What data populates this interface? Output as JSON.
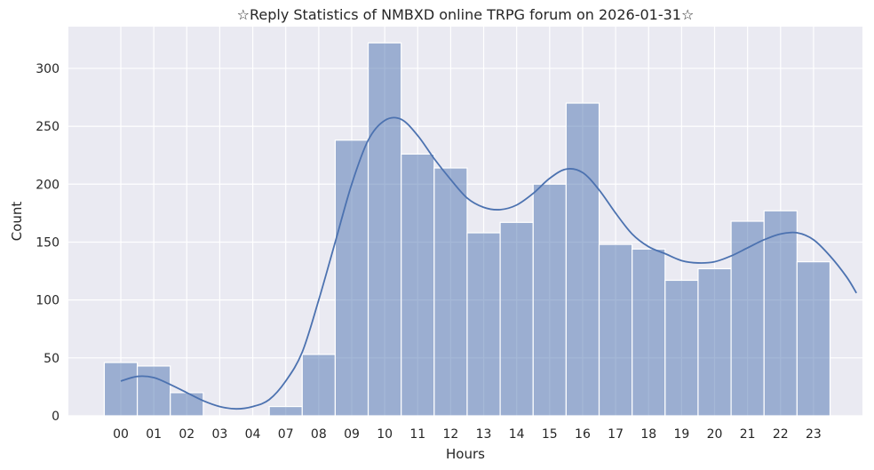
{
  "chart_data": {
    "type": "bar",
    "title": "☆Reply Statistics of NMBXD online TRPG forum on 2026-01-31☆",
    "xlabel": "Hours",
    "ylabel": "Count",
    "categories": [
      "00",
      "01",
      "02",
      "03",
      "04",
      "07",
      "08",
      "09",
      "10",
      "11",
      "12",
      "13",
      "14",
      "15",
      "16",
      "17",
      "18",
      "19",
      "20",
      "21",
      "22",
      "23"
    ],
    "values": [
      46,
      43,
      20,
      0,
      0,
      8,
      53,
      238,
      322,
      226,
      214,
      158,
      167,
      200,
      270,
      148,
      144,
      117,
      127,
      168,
      177,
      133
    ],
    "kde": [
      [
        0.0,
        30
      ],
      [
        0.5,
        34
      ],
      [
        1.0,
        33
      ],
      [
        1.5,
        27
      ],
      [
        2.0,
        20
      ],
      [
        2.5,
        13
      ],
      [
        3.0,
        8
      ],
      [
        3.5,
        6
      ],
      [
        4.0,
        8
      ],
      [
        4.5,
        14
      ],
      [
        5.0,
        30
      ],
      [
        5.5,
        55
      ],
      [
        6.0,
        100
      ],
      [
        6.5,
        150
      ],
      [
        7.0,
        200
      ],
      [
        7.5,
        238
      ],
      [
        8.0,
        255
      ],
      [
        8.5,
        256
      ],
      [
        9.0,
        242
      ],
      [
        9.5,
        222
      ],
      [
        10.0,
        204
      ],
      [
        10.5,
        188
      ],
      [
        11.0,
        180
      ],
      [
        11.5,
        178
      ],
      [
        12.0,
        182
      ],
      [
        12.5,
        192
      ],
      [
        13.0,
        205
      ],
      [
        13.5,
        213
      ],
      [
        14.0,
        210
      ],
      [
        14.5,
        195
      ],
      [
        15.0,
        175
      ],
      [
        15.5,
        157
      ],
      [
        16.0,
        146
      ],
      [
        16.5,
        140
      ],
      [
        17.0,
        134
      ],
      [
        17.5,
        132
      ],
      [
        18.0,
        133
      ],
      [
        18.5,
        138
      ],
      [
        19.0,
        145
      ],
      [
        19.5,
        152
      ],
      [
        20.0,
        157
      ],
      [
        20.5,
        158
      ],
      [
        21.0,
        152
      ],
      [
        21.5,
        138
      ],
      [
        22.0,
        120
      ],
      [
        22.3,
        106
      ]
    ],
    "ylim": [
      0,
      336
    ],
    "yticks": [
      0,
      50,
      100,
      150,
      200,
      250,
      300
    ],
    "grid": true,
    "colors": {
      "bar": "#4c72b0",
      "bar_opacity": 0.5,
      "line": "#4c72b0",
      "background": "#eaeaf2",
      "grid": "#ffffff"
    }
  }
}
